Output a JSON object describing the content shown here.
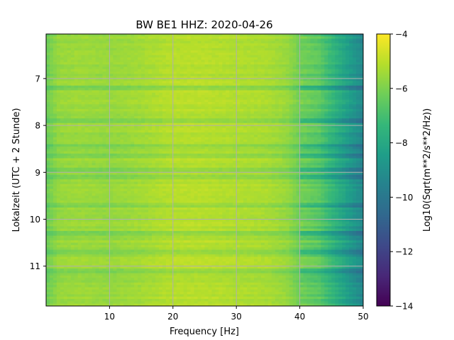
{
  "chart_data": {
    "type": "heatmap",
    "title": "BW BE1  HHZ: 2020-04-26",
    "xlabel": "Frequency [Hz]",
    "ylabel": "Lokalzeit (UTC + 2 Stunde)",
    "xlim": [
      0,
      50
    ],
    "ylim": [
      6.05,
      11.85
    ],
    "y_inverted": true,
    "x_ticks": [
      10,
      20,
      30,
      40,
      50
    ],
    "y_ticks": [
      7,
      8,
      9,
      10,
      11
    ],
    "grid": true,
    "colormap": "viridis",
    "colorbar": {
      "label": "Log10(Sqrt(m**2/s**2/Hz))",
      "range": [
        -14,
        -4
      ],
      "ticks": [
        -4,
        -6,
        -8,
        -10,
        -12,
        -14
      ]
    },
    "value_profile": {
      "frequency_hz": [
        0,
        2,
        5,
        10,
        15,
        20,
        25,
        30,
        35,
        38,
        40,
        43,
        45,
        48,
        50
      ],
      "log10_amplitude": [
        -6.3,
        -5.6,
        -5.5,
        -5.6,
        -5.4,
        -5.1,
        -5.1,
        -5.2,
        -5.3,
        -5.6,
        -6.2,
        -6.6,
        -7.4,
        -8.6,
        -9.4
      ]
    },
    "noisy_time_bands": [
      7.2,
      7.9,
      8.45,
      8.65,
      8.95,
      9.1,
      9.7,
      10.3,
      10.7,
      11.1
    ]
  },
  "colors": {
    "grid": "#b0b0b0",
    "viridis": [
      "#440154",
      "#482878",
      "#3e4989",
      "#31688e",
      "#26828e",
      "#1f9e89",
      "#35b779",
      "#6ece58",
      "#b5de2b",
      "#fde725"
    ]
  }
}
